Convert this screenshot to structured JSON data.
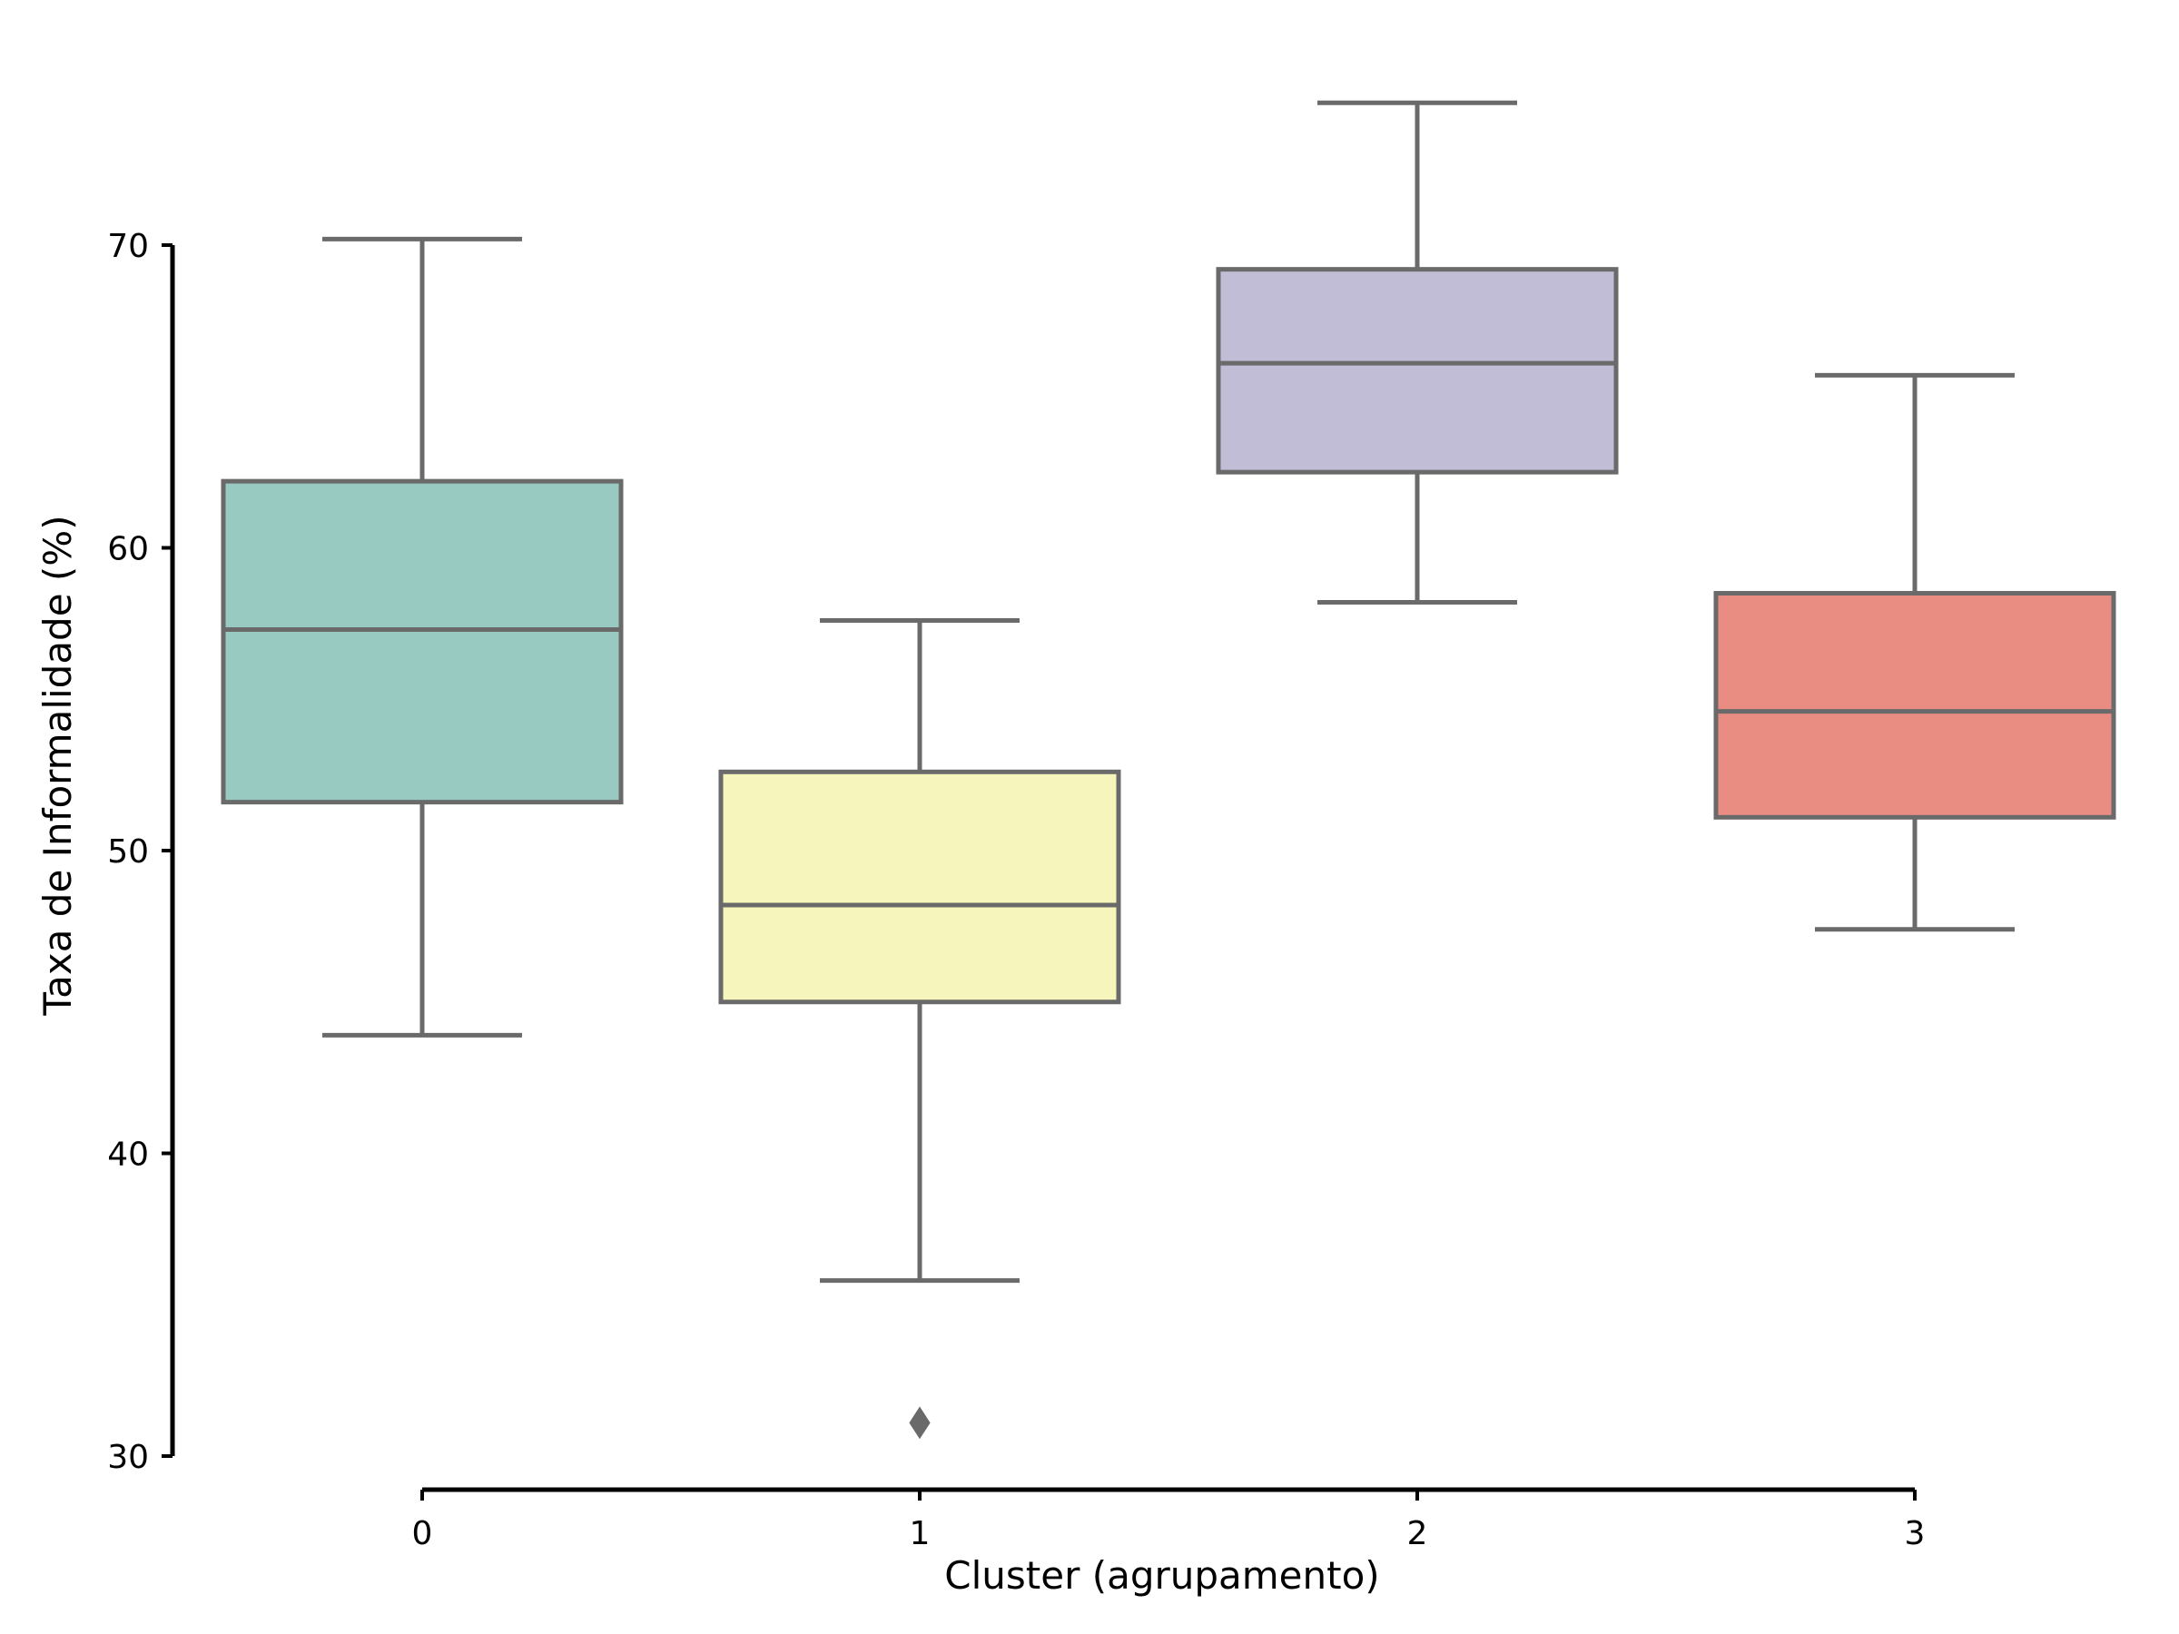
{
  "chart_data": {
    "type": "boxplot",
    "title": "",
    "xlabel": "Cluster (agrupamento)",
    "ylabel": "Taxa de Informalidade (%)",
    "ylim": [
      30,
      70
    ],
    "yticks": [
      30,
      40,
      50,
      60,
      70
    ],
    "y_tick_labels": [
      "30",
      "40",
      "50",
      "60",
      "70"
    ],
    "categories": [
      "0",
      "1",
      "2",
      "3"
    ],
    "boxes": [
      {
        "category": "0",
        "whisker_low": 43.9,
        "q1": 51.6,
        "median": 57.3,
        "q3": 62.2,
        "whisker_high": 70.2,
        "outliers": [],
        "color": "#98cac1"
      },
      {
        "category": "1",
        "whisker_low": 35.8,
        "q1": 45.0,
        "median": 48.2,
        "q3": 52.6,
        "whisker_high": 57.6,
        "outliers": [
          31.1
        ],
        "color": "#f6f5bb"
      },
      {
        "category": "2",
        "whisker_low": 58.2,
        "q1": 62.5,
        "median": 66.1,
        "q3": 69.2,
        "whisker_high": 74.7,
        "outliers": [],
        "color": "#c1bdd6"
      },
      {
        "category": "3",
        "whisker_low": 47.4,
        "q1": 51.1,
        "median": 54.6,
        "q3": 58.5,
        "whisker_high": 65.7,
        "outliers": [],
        "color": "#e98d82"
      }
    ],
    "line_color": "#6a6a6a",
    "axis_color": "#000000",
    "grid": false
  }
}
